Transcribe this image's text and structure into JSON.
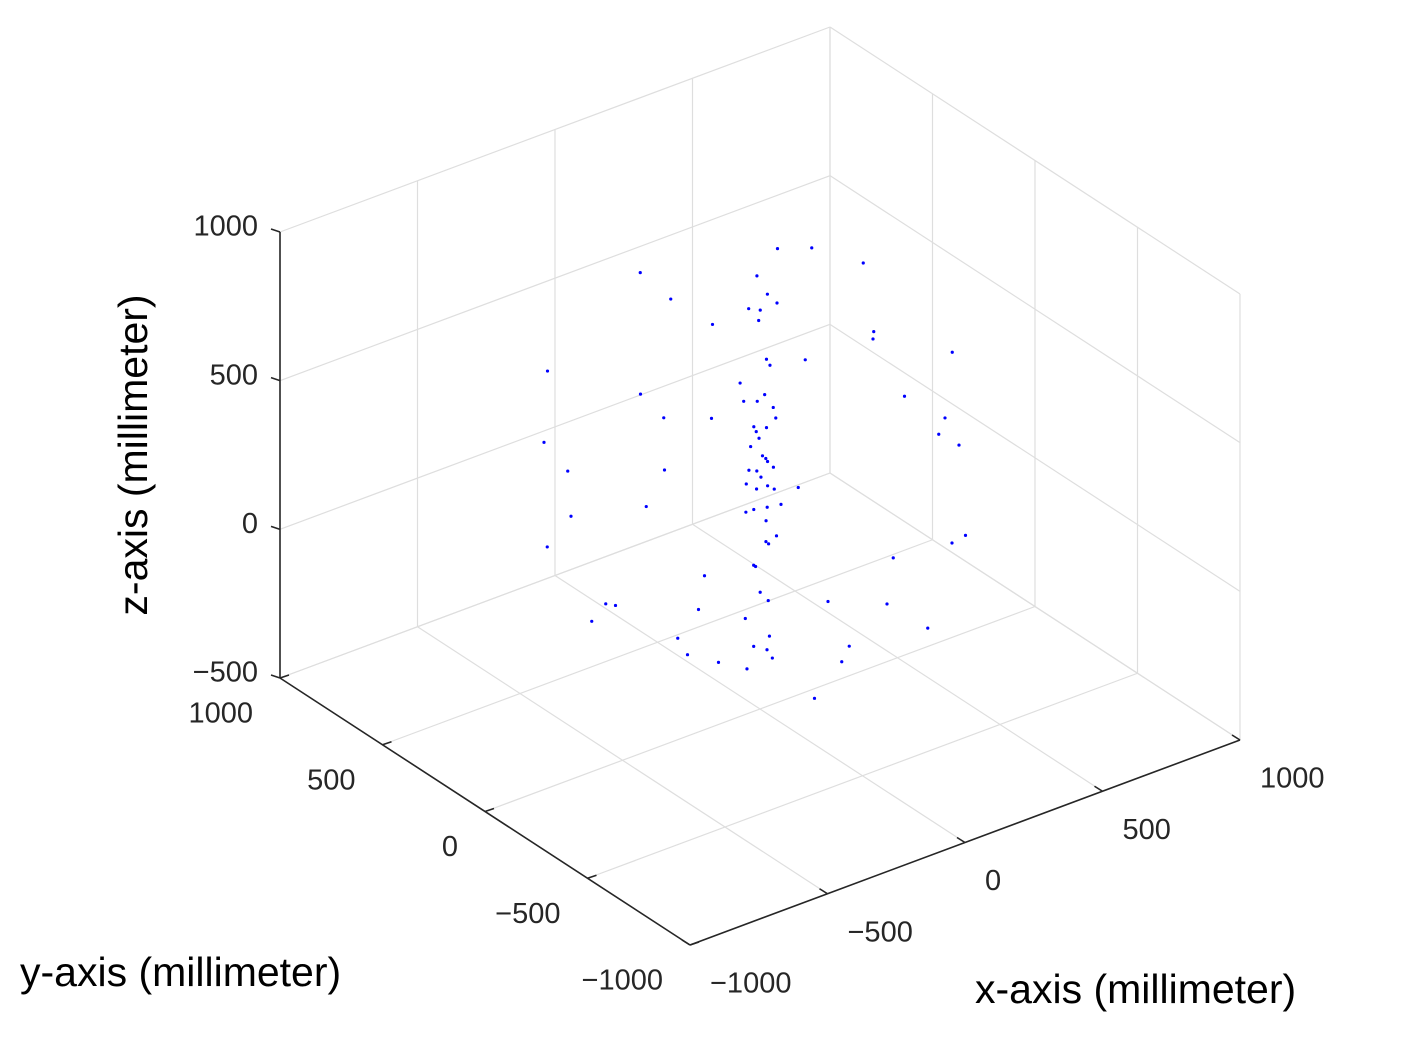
{
  "chart_data": {
    "type": "scatter3d",
    "x_label": "x-axis (millimeter)",
    "y_label": "y-axis (millimeter)",
    "z_label": "z-axis (millimeter)",
    "xlim": [
      -1000,
      1000
    ],
    "ylim": [
      -1000,
      1000
    ],
    "zlim": [
      -500,
      1000
    ],
    "xticks": [
      {
        "value": -1000,
        "label": "−1000"
      },
      {
        "value": -500,
        "label": "−500"
      },
      0,
      500,
      1000
    ],
    "yticks": [
      {
        "value": -1000,
        "label": "−1000"
      },
      {
        "value": -500,
        "label": "−500"
      },
      0,
      500,
      1000
    ],
    "zticks": [
      {
        "value": -500,
        "label": "−500"
      },
      0,
      500,
      1000
    ],
    "grid": true,
    "series": [
      {
        "color": "#0000ff",
        "x": [
          12,
          -30,
          25,
          -10,
          40,
          -50,
          8,
          -22,
          35,
          -15,
          5,
          -40,
          30,
          -5,
          18,
          -28,
          45,
          -12,
          2,
          -35,
          22,
          -8,
          50,
          -45,
          15,
          -20,
          28,
          -6,
          38,
          -32,
          10,
          -18,
          24,
          -40,
          6,
          -14,
          30,
          -25,
          0,
          20,
          600,
          -550,
          300,
          -200,
          400,
          -400,
          100,
          -600,
          250,
          -300,
          500,
          -100,
          350,
          -450,
          150,
          -250,
          200,
          -500,
          650,
          -650,
          0,
          50,
          -350,
          400,
          -150,
          250,
          -300,
          550,
          -550,
          300,
          -200,
          150,
          -350,
          400,
          -100,
          200,
          -450,
          600,
          -600,
          100,
          -50,
          450,
          -400,
          300,
          -150,
          500,
          -500,
          0,
          300,
          -250
        ],
        "y": [
          -20,
          15,
          40,
          -45,
          5,
          30,
          -12,
          50,
          -30,
          10,
          25,
          -8,
          45,
          -35,
          12,
          -22,
          -5,
          38,
          -2,
          20,
          -40,
          6,
          30,
          -30,
          -15,
          42,
          8,
          -50,
          22,
          -12,
          35,
          -25,
          -8,
          18,
          -38,
          12,
          -20,
          30,
          15,
          -10,
          100,
          200,
          -500,
          -600,
          350,
          -300,
          600,
          -100,
          250,
          350,
          -300,
          -400,
          -150,
          450,
          -350,
          100,
          500,
          -400,
          0,
          50,
          -650,
          650,
          -550,
          550,
          200,
          -100,
          -200,
          -200,
          300,
          300,
          -300,
          200,
          0,
          -400,
          450,
          -550,
          -250,
          250,
          -250,
          100,
          -150,
          100,
          500,
          -600,
          -600,
          450,
          150,
          300,
          150,
          -400
        ],
        "z": [
          900,
          850,
          780,
          700,
          640,
          600,
          560,
          520,
          480,
          450,
          420,
          400,
          380,
          360,
          340,
          320,
          300,
          290,
          280,
          260,
          250,
          240,
          220,
          200,
          180,
          150,
          120,
          80,
          40,
          0,
          -40,
          -90,
          -140,
          -190,
          -240,
          -290,
          -330,
          -370,
          950,
          330,
          300,
          400,
          600,
          200,
          -50,
          750,
          0,
          100,
          850,
          -200,
          350,
          -250,
          -200,
          350,
          850,
          920,
          500,
          300,
          200,
          350,
          300,
          250,
          450,
          150,
          -300,
          -330,
          -150,
          600,
          100,
          -50,
          650,
          700,
          600,
          100,
          800,
          -50,
          -50,
          450,
          500,
          -380,
          950,
          800,
          550,
          250,
          -20,
          300,
          -100,
          -300,
          880,
          780
        ]
      }
    ]
  }
}
